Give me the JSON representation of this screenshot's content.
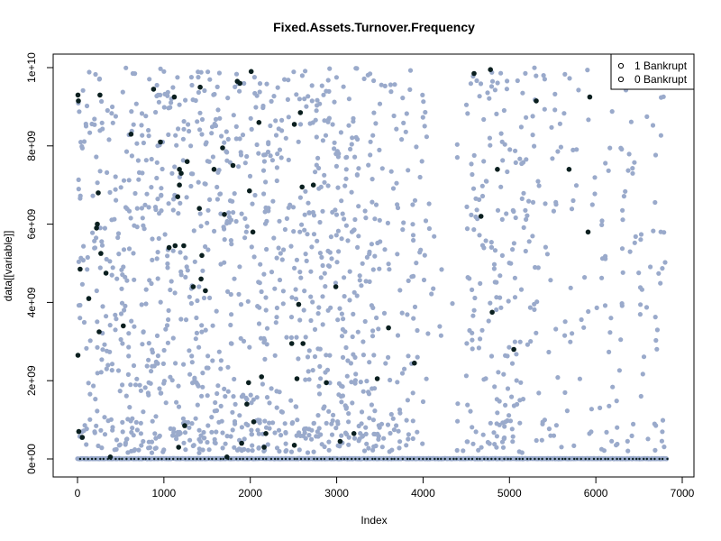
{
  "chart_data": {
    "type": "scatter",
    "title": "Fixed.Assets.Turnover.Frequency",
    "xlabel": "Index",
    "ylabel": "data[[variable]]",
    "xlim": [
      0,
      6819
    ],
    "ylim": [
      0,
      10000000000
    ],
    "x_ticks": [
      0,
      1000,
      2000,
      3000,
      4000,
      5000,
      6000,
      7000
    ],
    "x_tick_labels": [
      "0",
      "1000",
      "2000",
      "3000",
      "4000",
      "5000",
      "6000",
      "7000"
    ],
    "y_ticks": [
      0,
      2000000000,
      4000000000,
      6000000000,
      8000000000,
      10000000000
    ],
    "y_tick_labels": [
      "0e+00",
      "2e+09",
      "4e+09",
      "6e+09",
      "8e+09",
      "1e+10"
    ],
    "legend": {
      "placement": "top-right",
      "entries": [
        {
          "label": "1 Bankrupt",
          "symbol": "o"
        },
        {
          "label": "0 Bankrupt",
          "symbol": "o"
        }
      ]
    },
    "colors": {
      "non_bankrupt": "#9aaacb",
      "bankrupt": "#0a1f1f"
    },
    "series": [
      {
        "group": "bankrupt",
        "points": [
          [
            5,
            9300000000
          ],
          [
            10,
            9150000000
          ],
          [
            5,
            2650000000
          ],
          [
            15,
            700000000
          ],
          [
            30,
            4850000000
          ],
          [
            55,
            550000000
          ],
          [
            130,
            4100000000
          ],
          [
            220,
            5900000000
          ],
          [
            230,
            6000000000
          ],
          [
            240,
            6800000000
          ],
          [
            250,
            3250000000
          ],
          [
            260,
            9300000000
          ],
          [
            270,
            5250000000
          ],
          [
            330,
            4750000000
          ],
          [
            380,
            50000000
          ],
          [
            530,
            3400000000
          ],
          [
            620,
            8300000000
          ],
          [
            880,
            9450000000
          ],
          [
            960,
            8100000000
          ],
          [
            1060,
            5400000000
          ],
          [
            1120,
            9250000000
          ],
          [
            1130,
            5450000000
          ],
          [
            1160,
            6700000000
          ],
          [
            1170,
            300000000
          ],
          [
            1180,
            7000000000
          ],
          [
            1180,
            7400000000
          ],
          [
            1200,
            7300000000
          ],
          [
            1230,
            5450000000
          ],
          [
            1240,
            850000000
          ],
          [
            1270,
            7600000000
          ],
          [
            1340,
            4400000000
          ],
          [
            1410,
            6400000000
          ],
          [
            1420,
            9500000000
          ],
          [
            1430,
            4600000000
          ],
          [
            1440,
            5200000000
          ],
          [
            1480,
            4300000000
          ],
          [
            1580,
            7400000000
          ],
          [
            1680,
            7950000000
          ],
          [
            1700,
            6250000000
          ],
          [
            1730,
            50000000
          ],
          [
            1800,
            7500000000
          ],
          [
            1850,
            9650000000
          ],
          [
            1880,
            9600000000
          ],
          [
            1900,
            400000000
          ],
          [
            1960,
            1400000000
          ],
          [
            1980,
            1950000000
          ],
          [
            1990,
            6850000000
          ],
          [
            2010,
            9900000000
          ],
          [
            2030,
            5800000000
          ],
          [
            2040,
            950000000
          ],
          [
            2100,
            8600000000
          ],
          [
            2130,
            2100000000
          ],
          [
            2160,
            300000000
          ],
          [
            2180,
            650000000
          ],
          [
            2480,
            2950000000
          ],
          [
            2510,
            8550000000
          ],
          [
            2510,
            350000000
          ],
          [
            2540,
            2050000000
          ],
          [
            2560,
            3950000000
          ],
          [
            2580,
            8850000000
          ],
          [
            2600,
            6950000000
          ],
          [
            2610,
            2950000000
          ],
          [
            2730,
            7000000000
          ],
          [
            2880,
            1950000000
          ],
          [
            2990,
            4400000000
          ],
          [
            3040,
            450000000
          ],
          [
            3200,
            650000000
          ],
          [
            3470,
            2050000000
          ],
          [
            3600,
            3350000000
          ],
          [
            3900,
            2450000000
          ],
          [
            4590,
            9850000000
          ],
          [
            4670,
            6200000000
          ],
          [
            4780,
            9950000000
          ],
          [
            4800,
            3750000000
          ],
          [
            4860,
            7400000000
          ],
          [
            5050,
            2800000000
          ],
          [
            5310,
            9150000000
          ],
          [
            5690,
            7400000000
          ],
          [
            5910,
            5800000000
          ],
          [
            5930,
            9250000000
          ]
        ]
      }
    ]
  }
}
